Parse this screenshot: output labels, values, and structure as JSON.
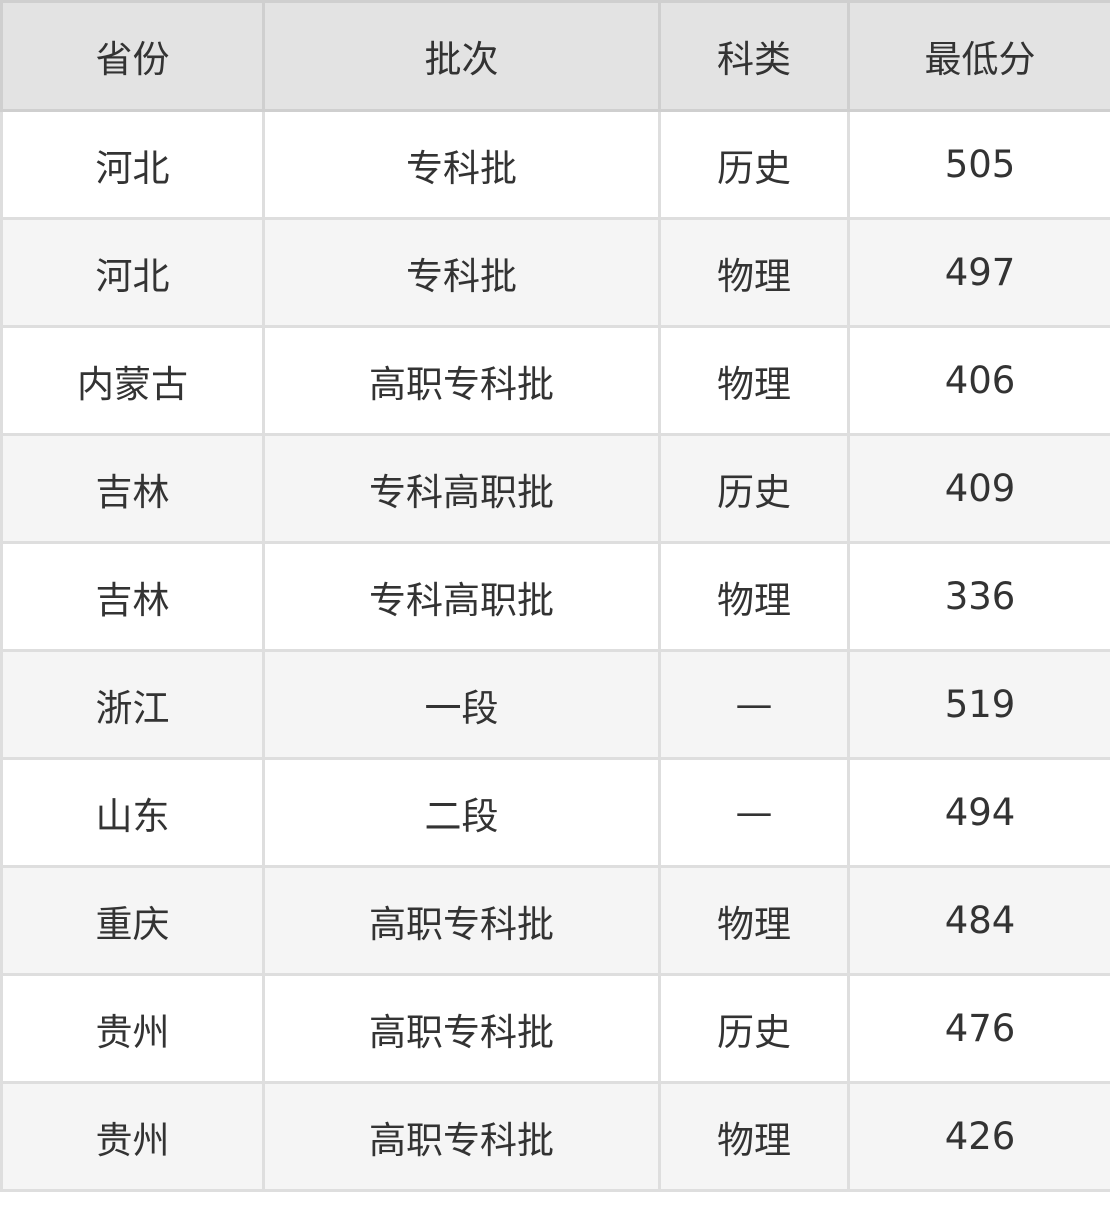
{
  "table": {
    "headers": [
      "省份",
      "批次",
      "科类",
      "最低分"
    ],
    "rows": [
      [
        "河北",
        "专科批",
        "历史",
        "505"
      ],
      [
        "河北",
        "专科批",
        "物理",
        "497"
      ],
      [
        "内蒙古",
        "高职专科批",
        "物理",
        "406"
      ],
      [
        "吉林",
        "专科高职批",
        "历史",
        "409"
      ],
      [
        "吉林",
        "专科高职批",
        "物理",
        "336"
      ],
      [
        "浙江",
        "一段",
        "—",
        "519"
      ],
      [
        "山东",
        "二段",
        "—",
        "494"
      ],
      [
        "重庆",
        "高职专科批",
        "物理",
        "484"
      ],
      [
        "贵州",
        "高职专科批",
        "历史",
        "476"
      ],
      [
        "贵州",
        "高职专科批",
        "物理",
        "426"
      ]
    ]
  }
}
